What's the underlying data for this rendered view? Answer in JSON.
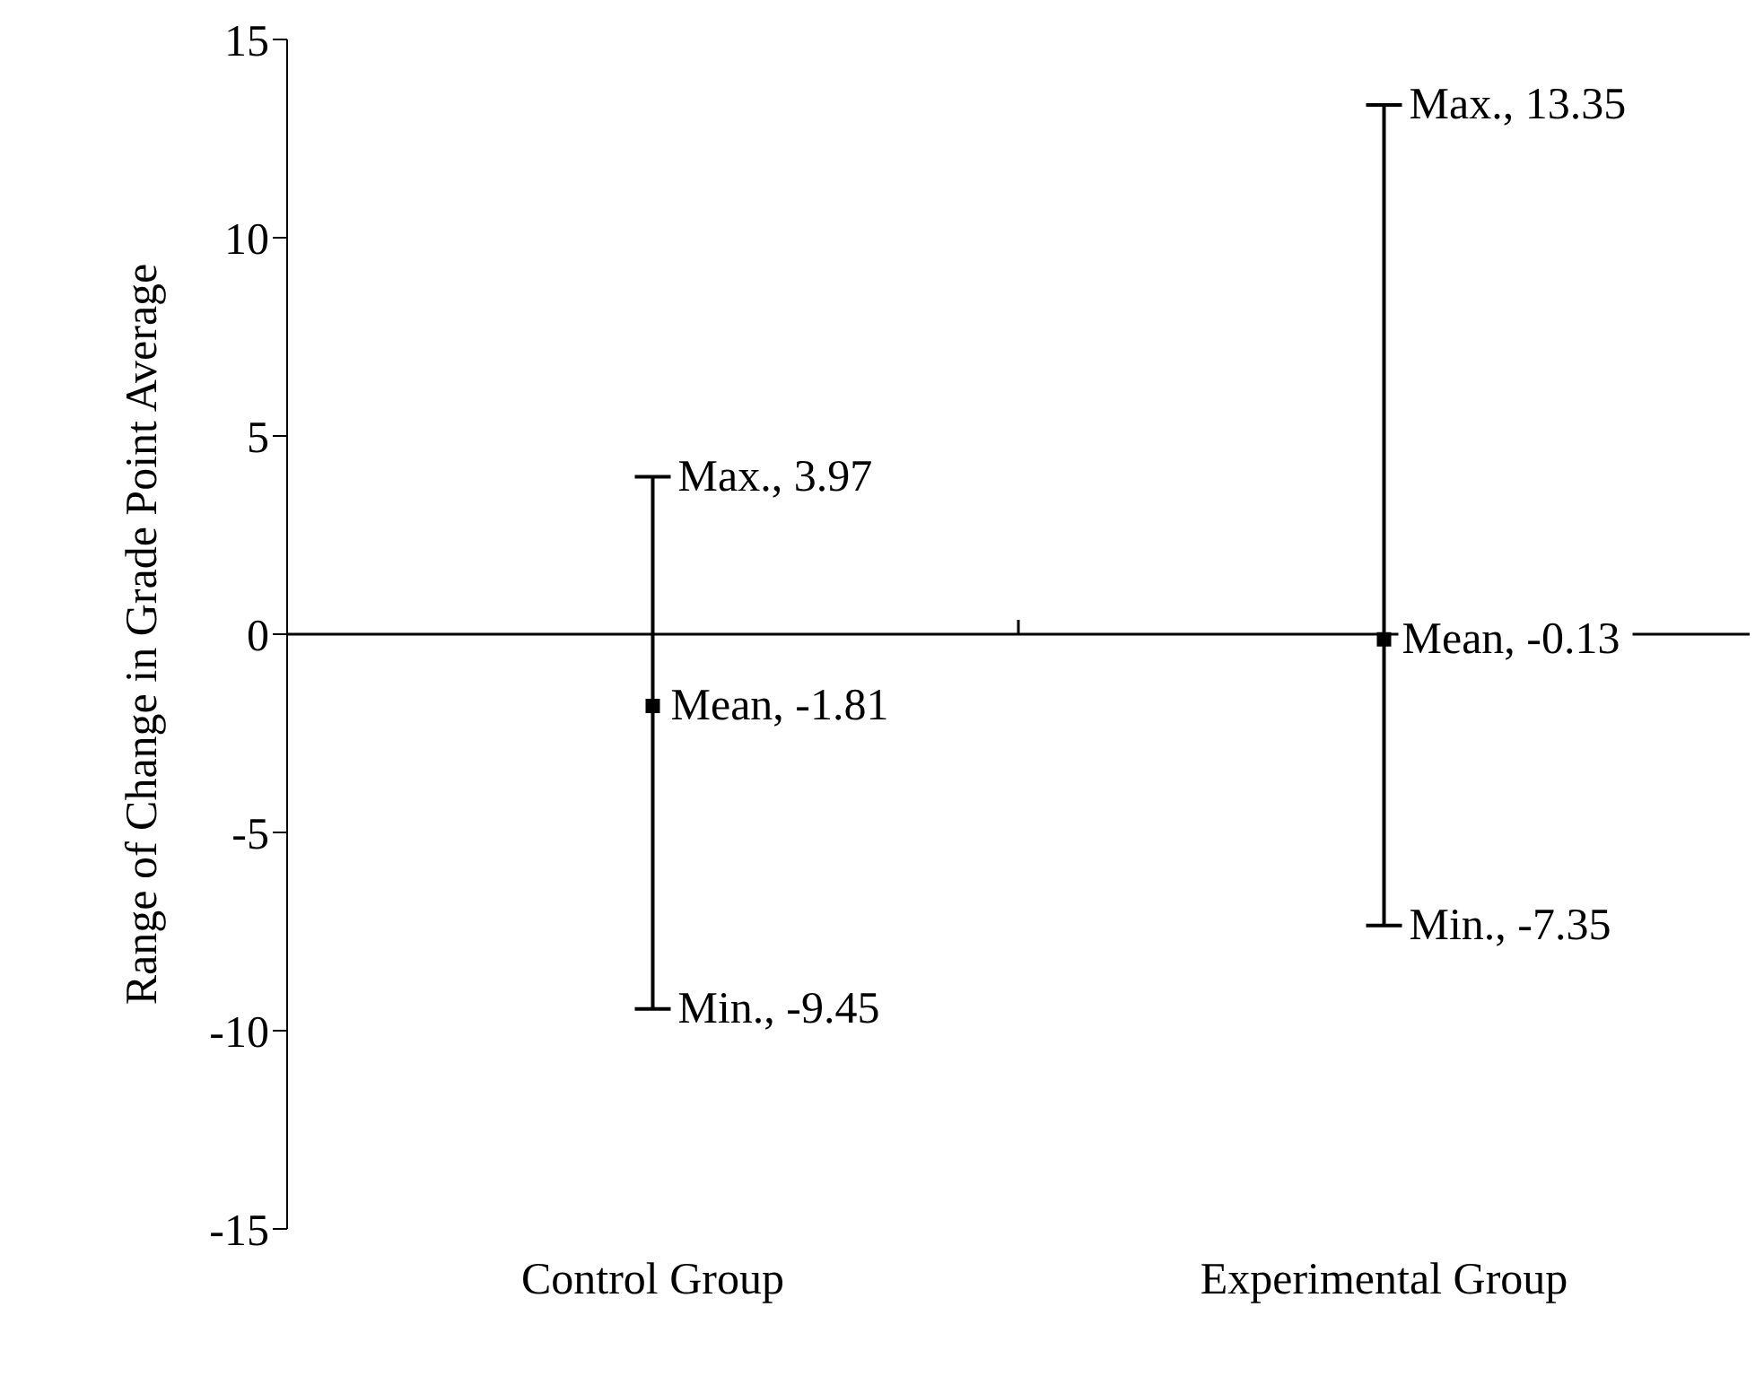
{
  "chart_data": {
    "type": "scatter",
    "ylabel": "Range of Change in Grade Point Average",
    "categories": [
      "Control Group",
      "Experimental Group"
    ],
    "values": [
      -1.81,
      -0.13
    ],
    "errors": [
      [
        -9.45,
        3.97
      ],
      [
        -7.35,
        13.35
      ]
    ],
    "value_labels": [
      "Mean, -1.81",
      "Mean, -0.13"
    ],
    "color": "#000000",
    "marker": "square",
    "ylim": [
      -15,
      15
    ],
    "yticks": [
      -15,
      -10,
      -5,
      0,
      5,
      10,
      15
    ],
    "annotations": [
      {
        "text": "Max., 3.97",
        "x": "Control Group",
        "y": 3.97
      },
      {
        "text": "Min., -9.45",
        "x": "Control Group",
        "y": -9.45
      },
      {
        "text": "Max., 13.35",
        "x": "Experimental Group",
        "y": 13.35
      },
      {
        "text": "Min., -7.35",
        "x": "Experimental Group",
        "y": -7.35
      }
    ]
  }
}
